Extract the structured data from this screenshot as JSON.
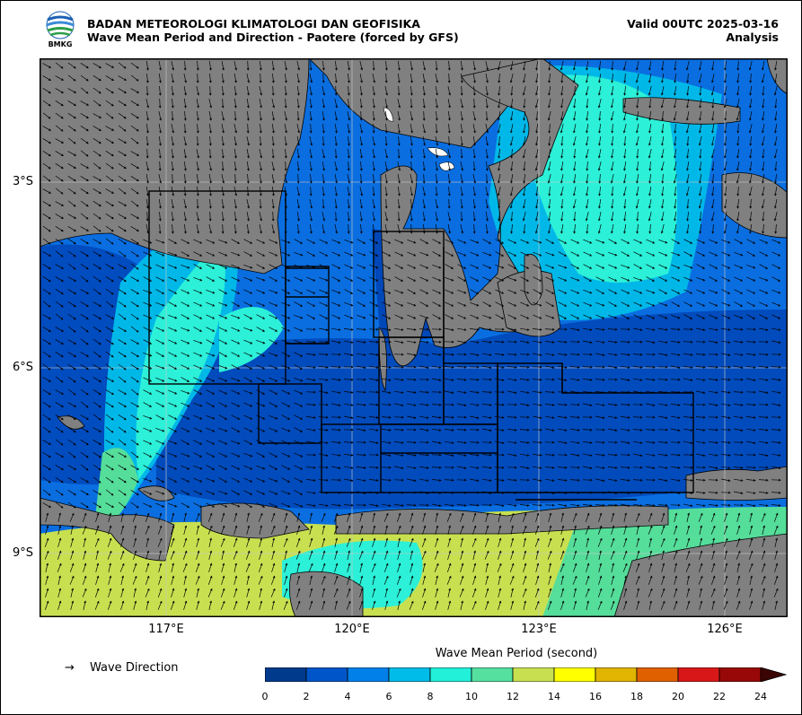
{
  "header": {
    "agency": "BADAN METEOROLOGI KLIMATOLOGI DAN GEOFISIKA",
    "subtitle": "Wave Mean Period and Direction - Paotere (forced by GFS)",
    "valid": "Valid 00UTC 2025-03-16",
    "mode": "Analysis",
    "logo_text": "BMKG"
  },
  "axes": {
    "lat_labels": [
      "3°S",
      "6°S",
      "9°S"
    ],
    "lon_labels": [
      "117°E",
      "120°E",
      "123°E",
      "126°E"
    ]
  },
  "legend": {
    "arrow_symbol": "→",
    "direction_label": "Wave Direction"
  },
  "colorbar": {
    "title": "Wave Mean Period (second)",
    "ticks": [
      "0",
      "2",
      "4",
      "6",
      "8",
      "10",
      "12",
      "14",
      "16",
      "18",
      "20",
      "22",
      "24"
    ],
    "colors": [
      "#003a8c",
      "#0055c8",
      "#0080e8",
      "#00bce8",
      "#22f0d8",
      "#55e0a0",
      "#c8e050",
      "#ffff00",
      "#e0b400",
      "#e06000",
      "#d81818",
      "#980808"
    ]
  },
  "map_colors": {
    "land": "#808080",
    "sea_dark": "#0047b8",
    "sea_mid": "#0a6ee0",
    "sea_light": "#00b8e8",
    "sea_cyan": "#2cf0d8",
    "sea_green": "#55dd9a",
    "sea_yellow": "#c8e050"
  }
}
